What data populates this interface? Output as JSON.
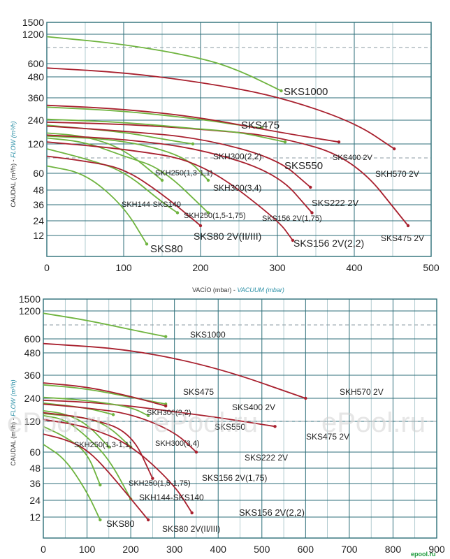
{
  "chart_data": [
    {
      "type": "line",
      "xlabel_es": "VACÍO (mbar) - ",
      "xlabel_en": "VACUUM (mbar)",
      "ylabel_es": "CAUDAL (m³/h) - ",
      "ylabel_en": "FLOW (m³/h)",
      "xlim": [
        0,
        500
      ],
      "xticks": [
        "0",
        "100",
        "200",
        "300",
        "400",
        "500"
      ],
      "yticks": [
        "1500",
        "1200",
        "600",
        "480",
        "360",
        "240",
        "120",
        "60",
        "48",
        "36",
        "24",
        "12"
      ],
      "series": [
        {
          "name": "SKS1000",
          "color": "#6fb43f",
          "x": [
            0,
            100,
            200,
            250,
            305
          ],
          "y": [
            1150,
            1000,
            720,
            540,
            400
          ]
        },
        {
          "name": "SKH570 2V",
          "color": "#a8202e",
          "x": [
            0,
            100,
            200,
            300,
            400,
            452
          ],
          "y": [
            560,
            520,
            450,
            370,
            230,
            110
          ]
        },
        {
          "name": "SKS475",
          "color": "#6fb43f",
          "x": [
            0,
            100,
            200,
            250,
            280
          ],
          "y": [
            310,
            290,
            245,
            215,
            200
          ]
        },
        {
          "name": "SKS400 2V",
          "color": "#a8202e",
          "x": [
            0,
            100,
            200,
            300,
            380
          ],
          "y": [
            320,
            300,
            255,
            180,
            130
          ]
        },
        {
          "name": "SKS475 2V",
          "color": "#a8202e",
          "x": [
            0,
            100,
            200,
            300,
            400,
            470
          ],
          "y": [
            230,
            220,
            195,
            160,
            90,
            20
          ]
        },
        {
          "name": "SKS550",
          "color": "#6fb43f",
          "x": [
            0,
            100,
            200,
            250,
            310
          ],
          "y": [
            245,
            230,
            195,
            180,
            130
          ]
        },
        {
          "name": "SKH300(2,2)",
          "color": "#6fb43f",
          "x": [
            0,
            100,
            150,
            190
          ],
          "y": [
            215,
            180,
            145,
            120
          ]
        },
        {
          "name": "SKS222 2V",
          "color": "#a8202e",
          "x": [
            0,
            100,
            200,
            300,
            343
          ],
          "y": [
            210,
            185,
            150,
            90,
            50
          ]
        },
        {
          "name": "SKH250(1,3-1,1)",
          "color": "#6fb43f",
          "x": [
            0,
            50,
            100,
            150
          ],
          "y": [
            175,
            160,
            110,
            55
          ]
        },
        {
          "name": "SKH300(3,4)",
          "color": "#6fb43f",
          "x": [
            0,
            100,
            180,
            210
          ],
          "y": [
            160,
            140,
            95,
            55
          ]
        },
        {
          "name": "SKS156 2V(1,75)",
          "color": "#a8202e",
          "x": [
            0,
            100,
            200,
            300,
            345
          ],
          "y": [
            165,
            145,
            110,
            60,
            30
          ]
        },
        {
          "name": "SKH250(1,5-1,75)",
          "color": "#6fb43f",
          "x": [
            0,
            50,
            100,
            150,
            210
          ],
          "y": [
            150,
            130,
            95,
            70,
            30
          ]
        },
        {
          "name": "SKS156 2V(2,2)",
          "color": "#a8202e",
          "x": [
            0,
            100,
            200,
            300,
            320
          ],
          "y": [
            130,
            110,
            85,
            25,
            8
          ]
        },
        {
          "name": "SKH144-SKS140",
          "color": "#6fb43f",
          "x": [
            0,
            50,
            100,
            150,
            170
          ],
          "y": [
            110,
            90,
            65,
            38,
            30
          ]
        },
        {
          "name": "SKS80 2V(II/III)",
          "color": "#a8202e",
          "x": [
            0,
            50,
            100,
            150,
            200
          ],
          "y": [
            95,
            85,
            70,
            45,
            20
          ]
        },
        {
          "name": "SKS80",
          "color": "#6fb43f",
          "x": [
            0,
            50,
            100,
            130
          ],
          "y": [
            75,
            60,
            35,
            5
          ]
        }
      ]
    },
    {
      "type": "line",
      "xlabel_es": "",
      "xlabel_en": "",
      "ylabel_es": "CAUDAL (m³/h) - ",
      "ylabel_en": "FLOW (m³/h)",
      "xlim": [
        0,
        900
      ],
      "xticks": [
        "0",
        "100",
        "200",
        "300",
        "400",
        "500",
        "600",
        "700",
        "800",
        "900"
      ],
      "yticks": [
        "1500",
        "1200",
        "600",
        "480",
        "360",
        "240",
        "120",
        "60",
        "48",
        "36",
        "24",
        "12"
      ],
      "series": [
        {
          "name": "SKS1000",
          "color": "#6fb43f",
          "x": [
            0,
            100,
            200,
            280
          ],
          "y": [
            1150,
            1000,
            800,
            650
          ]
        },
        {
          "name": "SKH570 2V",
          "color": "#a8202e",
          "x": [
            0,
            200,
            400,
            600
          ],
          "y": [
            560,
            510,
            400,
            240
          ]
        },
        {
          "name": "SKS475",
          "color": "#6fb43f",
          "x": [
            0,
            100,
            200,
            280
          ],
          "y": [
            310,
            290,
            245,
            210
          ]
        },
        {
          "name": "SKS400 2V",
          "color": "#a8202e",
          "x": [
            0,
            100,
            200,
            280
          ],
          "y": [
            320,
            300,
            250,
            200
          ]
        },
        {
          "name": "SKS475 2V",
          "color": "#a8202e",
          "x": [
            0,
            100,
            200,
            300,
            400,
            530
          ],
          "y": [
            230,
            220,
            200,
            170,
            140,
            110
          ]
        },
        {
          "name": "SKS550",
          "color": "#6fb43f",
          "x": [
            0,
            100,
            200,
            240
          ],
          "y": [
            245,
            230,
            195,
            150
          ]
        },
        {
          "name": "SKH300(2,2)",
          "color": "#6fb43f",
          "x": [
            0,
            100,
            160
          ],
          "y": [
            215,
            190,
            155
          ]
        },
        {
          "name": "SKS222 2V",
          "color": "#a8202e",
          "x": [
            0,
            100,
            200,
            300,
            350
          ],
          "y": [
            210,
            190,
            160,
            100,
            60
          ]
        },
        {
          "name": "SKH250(1,3-1,1)",
          "color": "#6fb43f",
          "x": [
            0,
            50,
            100,
            150
          ],
          "y": [
            175,
            160,
            115,
            70
          ]
        },
        {
          "name": "SKH300(3,4)",
          "color": "#6fb43f",
          "x": [
            0,
            100,
            150,
            200
          ],
          "y": [
            160,
            140,
            110,
            70
          ]
        },
        {
          "name": "SKS156 2V(1,75)",
          "color": "#a8202e",
          "x": [
            0,
            100,
            200,
            250
          ],
          "y": [
            165,
            140,
            100,
            40
          ]
        },
        {
          "name": "SKH250(1,5-1,75)",
          "color": "#6fb43f",
          "x": [
            0,
            50,
            100,
            150,
            200
          ],
          "y": [
            150,
            130,
            90,
            55,
            25
          ]
        },
        {
          "name": "SKS156 2V(2,2)",
          "color": "#a8202e",
          "x": [
            0,
            100,
            200,
            300,
            340
          ],
          "y": [
            130,
            110,
            75,
            35,
            15
          ]
        },
        {
          "name": "SKH144-SKS140",
          "color": "#6fb43f",
          "x": [
            0,
            50,
            100,
            130
          ],
          "y": [
            110,
            90,
            60,
            35
          ]
        },
        {
          "name": "SKS80 2V(II/III)",
          "color": "#a8202e",
          "x": [
            0,
            50,
            100,
            150,
            240
          ],
          "y": [
            95,
            85,
            65,
            45,
            10
          ]
        },
        {
          "name": "SKS80",
          "color": "#6fb43f",
          "x": [
            0,
            50,
            100,
            130
          ],
          "y": [
            75,
            55,
            30,
            10
          ]
        }
      ],
      "watermark": [
        "ePool.ru",
        "ePool.ru",
        "ePool.ru"
      ],
      "brand": "epool.ru"
    }
  ]
}
